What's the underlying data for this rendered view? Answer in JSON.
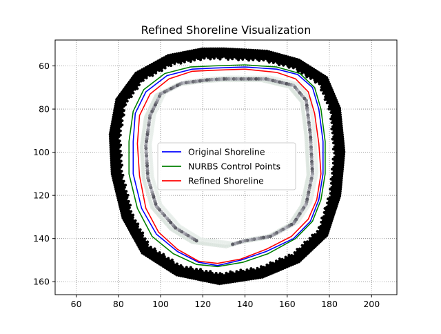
{
  "chart_data": {
    "type": "line",
    "title": "Refined Shoreline Visualization",
    "xlabel": "",
    "ylabel": "",
    "xlim": [
      50,
      212
    ],
    "ylim": [
      166,
      48
    ],
    "y_inverted": true,
    "grid": true,
    "grid_style": "dotted",
    "x_ticks": [
      60,
      80,
      100,
      120,
      140,
      160,
      180,
      200
    ],
    "y_ticks": [
      60,
      80,
      100,
      120,
      140,
      160
    ],
    "legend_position": "center",
    "series": [
      {
        "name": "Original Shoreline",
        "color": "#0000ff",
        "points": [
          [
            125,
            61
          ],
          [
            140,
            60.5
          ],
          [
            155,
            61.5
          ],
          [
            165,
            64
          ],
          [
            172,
            70
          ],
          [
            175,
            80
          ],
          [
            177,
            95
          ],
          [
            177,
            110
          ],
          [
            175,
            122
          ],
          [
            171,
            132
          ],
          [
            163,
            140
          ],
          [
            150,
            146
          ],
          [
            138,
            150
          ],
          [
            127,
            152.5
          ],
          [
            118,
            151
          ],
          [
            108,
            146
          ],
          [
            98,
            138
          ],
          [
            91,
            126
          ],
          [
            87,
            110
          ],
          [
            87,
            95
          ],
          [
            88,
            82
          ],
          [
            93,
            72
          ],
          [
            103,
            64.5
          ],
          [
            115,
            61.5
          ],
          [
            125,
            61
          ]
        ]
      },
      {
        "name": "NURBS Control Points",
        "color": "#008000",
        "points": [
          [
            125,
            60
          ],
          [
            140,
            59.5
          ],
          [
            155,
            60.5
          ],
          [
            166,
            63.5
          ],
          [
            173,
            70
          ],
          [
            176,
            80
          ],
          [
            178,
            95
          ],
          [
            178,
            110
          ],
          [
            176,
            122
          ],
          [
            172,
            132
          ],
          [
            164,
            140
          ],
          [
            151,
            147
          ],
          [
            139,
            151
          ],
          [
            127,
            153
          ],
          [
            117,
            152
          ],
          [
            106,
            147
          ],
          [
            96,
            139
          ],
          [
            89,
            126
          ],
          [
            85,
            110
          ],
          [
            85,
            95
          ],
          [
            87,
            81
          ],
          [
            92,
            71
          ],
          [
            102,
            63.5
          ],
          [
            114,
            60.5
          ],
          [
            125,
            60
          ]
        ]
      },
      {
        "name": "Refined Shoreline",
        "color": "#ff0000",
        "points": [
          [
            125,
            62
          ],
          [
            140,
            61.5
          ],
          [
            155,
            63
          ],
          [
            164,
            66
          ],
          [
            170,
            72
          ],
          [
            173,
            82
          ],
          [
            175,
            96
          ],
          [
            176,
            110
          ],
          [
            174,
            122
          ],
          [
            170,
            131
          ],
          [
            162,
            139
          ],
          [
            150,
            145
          ],
          [
            138,
            149.5
          ],
          [
            127,
            151.5
          ],
          [
            118,
            150.5
          ],
          [
            108,
            145
          ],
          [
            99,
            137
          ],
          [
            93,
            126
          ],
          [
            90,
            111
          ],
          [
            89,
            96
          ],
          [
            90,
            83
          ],
          [
            95,
            73
          ],
          [
            104,
            66
          ],
          [
            115,
            62.5
          ],
          [
            125,
            62
          ]
        ]
      }
    ],
    "scatter_rings": [
      {
        "color": "#000000",
        "points": [
          [
            130,
            53
          ],
          [
            150,
            54
          ],
          [
            165,
            58
          ],
          [
            178,
            66
          ],
          [
            184,
            80
          ],
          [
            186,
            100
          ],
          [
            184,
            120
          ],
          [
            178,
            138
          ],
          [
            165,
            150
          ],
          [
            148,
            157
          ],
          [
            128,
            160
          ],
          [
            108,
            156
          ],
          [
            92,
            146
          ],
          [
            83,
            130
          ],
          [
            78,
            110
          ],
          [
            77,
            92
          ],
          [
            80,
            76
          ],
          [
            89,
            64
          ],
          [
            104,
            56
          ],
          [
            120,
            53
          ],
          [
            130,
            53
          ]
        ]
      },
      {
        "color": "#555555",
        "points": [
          [
            130,
            66
          ],
          [
            150,
            66
          ],
          [
            163,
            69
          ],
          [
            169,
            76
          ],
          [
            171,
            92
          ],
          [
            172,
            110
          ],
          [
            169,
            124
          ],
          [
            163,
            133
          ],
          [
            152,
            139
          ],
          [
            140,
            141
          ],
          [
            133,
            143
          ]
        ]
      },
      {
        "color": "#555555",
        "points": [
          [
            117,
            141
          ],
          [
            107,
            135
          ],
          [
            98,
            125
          ],
          [
            94,
            112
          ],
          [
            93,
            97
          ],
          [
            95,
            83
          ],
          [
            100,
            73
          ],
          [
            110,
            68
          ],
          [
            122,
            66.5
          ],
          [
            130,
            66
          ]
        ]
      }
    ]
  }
}
